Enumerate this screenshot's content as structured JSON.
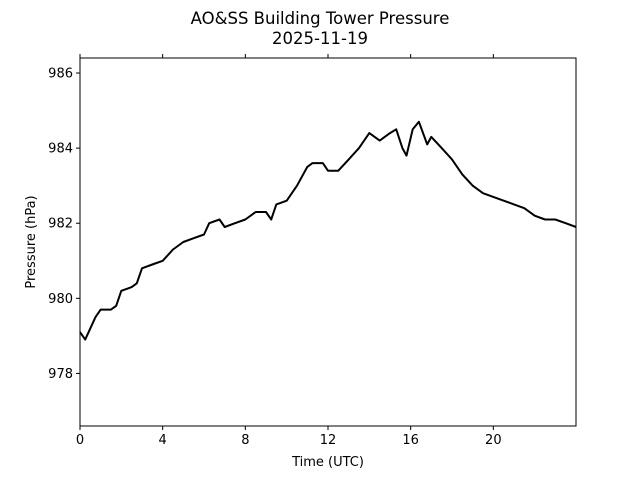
{
  "chart_data": {
    "type": "line",
    "title": "AO&SS Building Tower Pressure",
    "subtitle": "2025-11-19",
    "xlabel": "Time (UTC)",
    "ylabel": "Pressure (hPa)",
    "xlim": [
      0,
      24
    ],
    "ylim": [
      976.6,
      986.4
    ],
    "xticks": [
      0,
      4,
      8,
      12,
      16,
      20
    ],
    "xtick_labels": [
      "0",
      "4",
      "8",
      "12",
      "16",
      "20"
    ],
    "yticks": [
      978,
      980,
      982,
      984,
      986
    ],
    "ytick_labels": [
      "978",
      "980",
      "982",
      "984",
      "986"
    ],
    "grid": false,
    "line_color": "#000000",
    "series": [
      {
        "x": [
          0,
          0.25,
          0.5,
          0.75,
          1.0,
          1.5,
          1.75,
          2.0,
          2.5,
          2.75,
          3.0,
          3.5,
          4.0,
          4.5,
          5.0,
          5.5,
          6.0,
          6.25,
          6.75,
          7.0,
          7.5,
          8.0,
          8.5,
          9.0,
          9.25,
          9.5,
          10.0,
          10.5,
          11.0,
          11.25,
          11.75,
          12.0,
          12.5,
          13.0,
          13.5,
          14.0,
          14.5,
          15.0,
          15.3,
          15.6,
          15.8,
          16.1,
          16.4,
          16.8,
          17.0,
          17.5,
          18.0,
          18.5,
          19.0,
          19.5,
          20.0,
          20.5,
          21.0,
          21.5,
          22.0,
          22.5,
          23.0,
          23.5,
          24.0
        ],
        "y": [
          979.1,
          978.9,
          979.2,
          979.5,
          979.7,
          979.7,
          979.8,
          980.2,
          980.3,
          980.4,
          980.8,
          980.9,
          981.0,
          981.3,
          981.5,
          981.6,
          981.7,
          982.0,
          982.1,
          981.9,
          982.0,
          982.1,
          982.3,
          982.3,
          982.1,
          982.5,
          982.6,
          983.0,
          983.5,
          983.6,
          983.6,
          983.4,
          983.4,
          983.7,
          984.0,
          984.4,
          984.2,
          984.4,
          984.5,
          984.0,
          983.8,
          984.5,
          984.7,
          984.1,
          984.3,
          984.0,
          983.7,
          983.3,
          983.0,
          982.8,
          982.7,
          982.6,
          982.5,
          982.4,
          982.2,
          982.1,
          982.1,
          982.0,
          981.9
        ]
      }
    ]
  }
}
